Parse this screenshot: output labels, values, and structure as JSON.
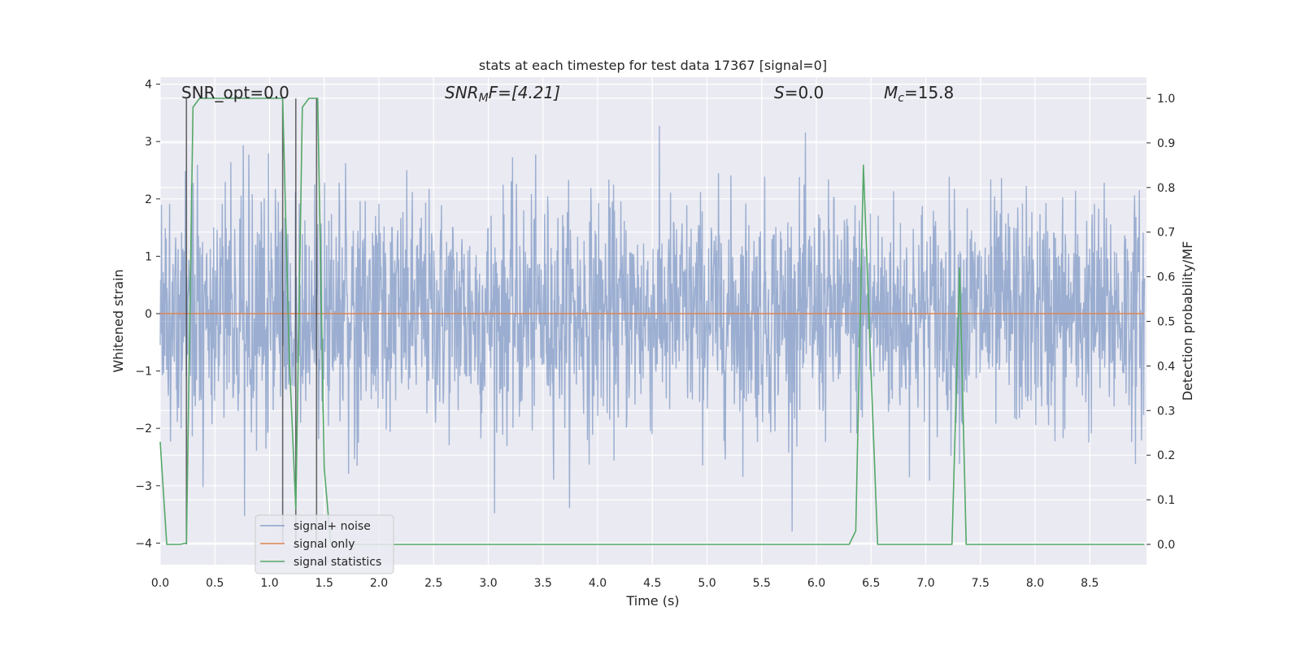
{
  "chart_data": {
    "type": "line",
    "title": "stats at each timestep for test data 17367 [signal=0]",
    "xlabel": "Time (s)",
    "ylabel_left": "Whitened strain",
    "ylabel_right": "Detection probability/MF",
    "xlim": [
      0.0,
      9.0
    ],
    "ylim_left": [
      -4.37,
      4.2
    ],
    "ylim_right": [
      -0.047,
      1.047
    ],
    "x_ticks": [
      "0.0",
      "0.5",
      "1.0",
      "1.5",
      "2.0",
      "2.5",
      "3.0",
      "3.5",
      "4.0",
      "4.5",
      "5.0",
      "5.5",
      "6.0",
      "6.5",
      "7.0",
      "7.5",
      "8.0",
      "8.5"
    ],
    "y_left_ticks": [
      "4",
      "3",
      "2",
      "1",
      "0",
      "−1",
      "−2",
      "−3",
      "−4"
    ],
    "y_right_ticks": [
      "1.0",
      "0.9",
      "0.8",
      "0.7",
      "0.6",
      "0.5",
      "0.4",
      "0.3",
      "0.2",
      "0.1",
      "0.0"
    ],
    "grid": true,
    "legend_position": "lower-left",
    "annotations": {
      "snr_opt": "SNR_opt=0.0",
      "snr_mf_a": "SNR",
      "snr_mf_b": "M",
      "snr_mf_c": "F=[4.21]",
      "s": "S",
      "s_val": "=0.0",
      "mc_a": "M",
      "mc_b": "c",
      "mc_c": "=15.8"
    },
    "series": [
      {
        "name": "signal+ noise",
        "color": "#4c72b0",
        "axis": "left",
        "description_range": [
          -3.8,
          3.75
        ]
      },
      {
        "name": "signal only",
        "color": "#dd8452",
        "axis": "left",
        "x": [
          0.0,
          9.0
        ],
        "y": [
          0.0,
          0.0
        ]
      },
      {
        "name": "signal statistics",
        "color": "#55a868",
        "axis": "right",
        "x": [
          0.0,
          0.06,
          0.18,
          0.24,
          0.3,
          0.36,
          1.12,
          1.18,
          1.24,
          1.3,
          1.36,
          1.44,
          1.5,
          1.56,
          6.3,
          6.36,
          6.43,
          6.49,
          6.56,
          7.24,
          7.31,
          7.37,
          7.43,
          9.0
        ],
        "y": [
          0.23,
          0.0,
          0.0,
          0.003,
          0.98,
          1.0,
          1.0,
          0.42,
          0.08,
          0.98,
          1.0,
          1.0,
          0.17,
          0.0,
          0.0,
          0.03,
          0.85,
          0.45,
          0.0,
          0.0,
          0.62,
          0.0,
          0.0,
          0.0
        ]
      }
    ],
    "vertical_markers_s": [
      0.24,
      1.12,
      1.24,
      1.43
    ]
  }
}
